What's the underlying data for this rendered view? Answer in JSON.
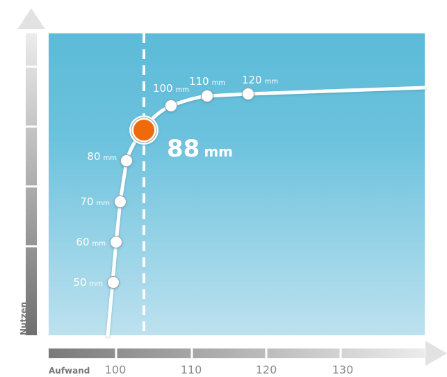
{
  "chart_data": {
    "type": "line",
    "title": "",
    "xlabel": "Aufwand",
    "ylabel": "Nutzen",
    "x_ticks": [
      "100",
      "110",
      "120",
      "130"
    ],
    "unit": "mm",
    "highlight": {
      "label": "88",
      "unit": "mm"
    },
    "points": [
      {
        "value": "50",
        "unit": "mm"
      },
      {
        "value": "60",
        "unit": "mm"
      },
      {
        "value": "70",
        "unit": "mm"
      },
      {
        "value": "80",
        "unit": "mm"
      },
      {
        "value": "100",
        "unit": "mm"
      },
      {
        "value": "110",
        "unit": "mm"
      },
      {
        "value": "120",
        "unit": "mm"
      }
    ],
    "colors": {
      "plot_top": "#5cbbd8",
      "plot_bottom": "#bde1ef",
      "curve": "#ffffff",
      "highlight": "#ee6a0b",
      "axis_dark": "#7a7a7a",
      "axis_light": "#e6e6e6"
    }
  }
}
